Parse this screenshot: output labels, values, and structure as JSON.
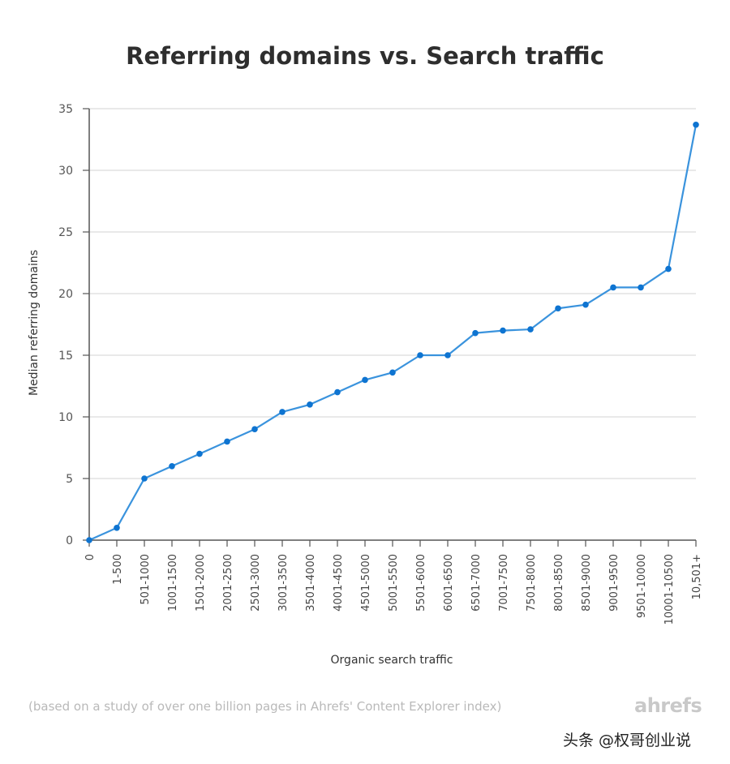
{
  "chart_data": {
    "type": "line",
    "title": "Referring domains vs. Search traffic",
    "xlabel": "Organic search traffic",
    "ylabel": "Median referring domains",
    "ylim": [
      0,
      35
    ],
    "yticks": [
      0,
      5,
      10,
      15,
      20,
      25,
      30,
      35
    ],
    "grid": "horizontal",
    "categories": [
      "0",
      "1-500",
      "501-1000",
      "1001-1500",
      "1501-2000",
      "2001-2500",
      "2501-3000",
      "3001-3500",
      "3501-4000",
      "4001-4500",
      "4501-5000",
      "5001-5500",
      "5501-6000",
      "6001-6500",
      "6501-7000",
      "7001-7500",
      "7501-8000",
      "8001-8500",
      "8501-9000",
      "9001-9500",
      "9501-10000",
      "10001-10500",
      "10,501+"
    ],
    "series": [
      {
        "values": [
          0,
          1,
          5,
          6,
          7,
          8,
          9,
          10.4,
          11,
          12,
          13,
          13.6,
          15,
          15,
          16.8,
          17,
          17.1,
          18.8,
          19.1,
          20.5,
          20.5,
          22,
          33.7
        ],
        "color": "#3a93dd",
        "marker_color": "#0e74d1"
      }
    ]
  },
  "footnote": "(based on a study of over one billion pages in Ahrefs' Content Explorer index)",
  "brand": "ahrefs",
  "watermark": "头条 @权哥创业说"
}
